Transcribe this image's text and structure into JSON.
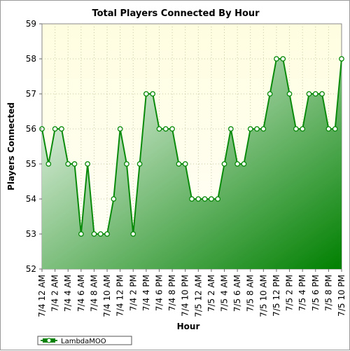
{
  "chart_data": {
    "type": "area",
    "title": "Total Players Connected By Hour",
    "xlabel": "Hour",
    "ylabel": "Players Connected",
    "ylim": [
      52,
      59
    ],
    "yticks": [
      52,
      53,
      54,
      55,
      56,
      57,
      58,
      59
    ],
    "grid": true,
    "legend_position": "bottom-left",
    "colors": {
      "plot_bg_top": "#fffde0",
      "plot_bg_bottom": "#fffff8",
      "fill_light": "#ffffff",
      "fill_dark": "#008000",
      "line": "#0a8a0a",
      "marker_fill": "#ffffff",
      "grid": "#c8c8a0"
    },
    "x_tick_labels": [
      "7/4 12 AM",
      "7/4 2 AM",
      "7/4 4 AM",
      "7/4 6 AM",
      "7/4 8 AM",
      "7/4 10 AM",
      "7/4 12 PM",
      "7/4 2 PM",
      "7/4 4 PM",
      "7/4 6 PM",
      "7/4 8 PM",
      "7/4 10 PM",
      "7/5 12 AM",
      "7/5 2 AM",
      "7/5 4 AM",
      "7/5 6 AM",
      "7/5 8 AM",
      "7/5 10 AM",
      "7/5 12 PM",
      "7/5 2 PM",
      "7/5 4 PM",
      "7/5 6 PM",
      "7/5 8 PM",
      "7/5 10 PM"
    ],
    "series": [
      {
        "name": "LambdaMOO",
        "values": [
          56,
          55,
          56,
          56,
          55,
          55,
          53,
          55,
          53,
          53,
          53,
          54,
          56,
          55,
          53,
          55,
          57,
          57,
          56,
          56,
          56,
          55,
          55,
          54,
          54,
          54,
          54,
          54,
          55,
          56,
          55,
          55,
          56,
          56,
          56,
          57,
          58,
          58,
          57,
          56,
          56,
          57,
          57,
          57,
          56,
          56,
          58
        ]
      }
    ]
  }
}
